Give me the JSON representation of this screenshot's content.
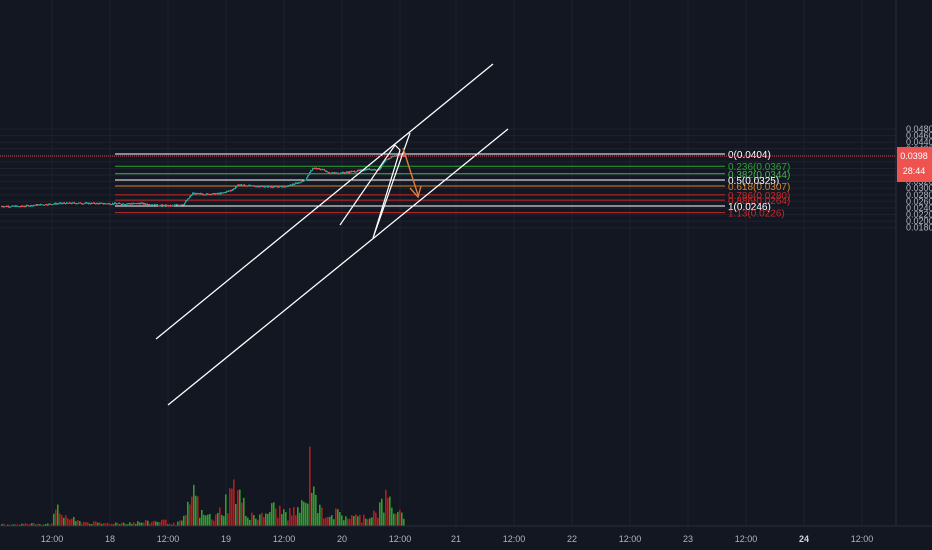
{
  "chart_data": {
    "type": "candlestick",
    "title": "",
    "y_axis": {
      "min": 0.0172,
      "max": 0.0492,
      "side": "right",
      "ticks": [
        "0.0480",
        "0.0460",
        "0.0440",
        "0.0420",
        "0.0380",
        "0.0360",
        "0.0340",
        "0.0320",
        "0.0300",
        "0.0280",
        "0.0260",
        "0.0240",
        "0.0220",
        "0.0200",
        "0.0180"
      ]
    },
    "x_axis": {
      "ticks": [
        "12:00",
        "18",
        "12:00",
        "19",
        "12:00",
        "20",
        "12:00",
        "21",
        "12:00",
        "22",
        "12:00",
        "23",
        "12:00",
        "24",
        "12:00"
      ],
      "bold_ticks": [
        "24"
      ]
    },
    "current_price": {
      "value": 0.0398,
      "label": "0.0398",
      "countdown": "28:44",
      "color": "#ef5350"
    },
    "fibonacci": {
      "levels": [
        {
          "ratio": "0",
          "price": 0.0404,
          "label": "0(0.0404)",
          "color": "#ffffff"
        },
        {
          "ratio": "0.236",
          "price": 0.0367,
          "label": "0.236(0.0367)",
          "color": "#26a62c"
        },
        {
          "ratio": "0.382",
          "price": 0.0344,
          "label": "0.382(0.0344)",
          "color": "#4caf50"
        },
        {
          "ratio": "0.5",
          "price": 0.0325,
          "label": "0.5(0.0325)",
          "color": "#ffffff"
        },
        {
          "ratio": "0.618",
          "price": 0.0307,
          "label": "0.618(0.0307)",
          "color": "#d9822b"
        },
        {
          "ratio": "0.786",
          "price": 0.028,
          "label": "0.786(0.0280)",
          "color": "#c62828"
        },
        {
          "ratio": "0.886",
          "price": 0.0264,
          "label": "0.886(0.0264)",
          "color": "#c62828"
        },
        {
          "ratio": "1",
          "price": 0.0246,
          "label": "1(0.0246)",
          "color": "#ffffff"
        },
        {
          "ratio": "1.13",
          "price": 0.0226,
          "label": "1.13(0.0226)",
          "color": "#c62828"
        }
      ]
    },
    "colors": {
      "background": "#131722",
      "up": "#26a69a",
      "down": "#ef5350",
      "volume_up": "#2e9e2e",
      "volume_down": "#b71c1c",
      "channel": "#ffffff",
      "arrow": "#e07b39",
      "axis_text": "#b2b5be"
    },
    "price_anchors": [
      [
        0,
        0.02455
      ],
      [
        20,
        0.0245
      ],
      [
        40,
        0.025
      ],
      [
        60,
        0.0254
      ],
      [
        75,
        0.0255
      ],
      [
        95,
        0.0254
      ],
      [
        120,
        0.0253
      ],
      [
        140,
        0.0254
      ],
      [
        155,
        0.0249
      ],
      [
        170,
        0.02465
      ],
      [
        183,
        0.0252
      ],
      [
        192,
        0.0284
      ],
      [
        205,
        0.0282
      ],
      [
        220,
        0.0284
      ],
      [
        232,
        0.0296
      ],
      [
        238,
        0.0311
      ],
      [
        250,
        0.0307
      ],
      [
        270,
        0.0305
      ],
      [
        285,
        0.0305
      ],
      [
        298,
        0.0317
      ],
      [
        305,
        0.0327
      ],
      [
        312,
        0.0361
      ],
      [
        322,
        0.0357
      ],
      [
        330,
        0.0346
      ],
      [
        342,
        0.0347
      ],
      [
        355,
        0.0352
      ],
      [
        368,
        0.0358
      ],
      [
        378,
        0.0356
      ],
      [
        385,
        0.0384
      ],
      [
        392,
        0.0398
      ],
      [
        400,
        0.04
      ],
      [
        404,
        0.0398
      ]
    ],
    "volume_anchors": [
      [
        0,
        2
      ],
      [
        50,
        3
      ],
      [
        56,
        18
      ],
      [
        75,
        6
      ],
      [
        100,
        3
      ],
      [
        150,
        5
      ],
      [
        160,
        7
      ],
      [
        175,
        2
      ],
      [
        185,
        10
      ],
      [
        192,
        46
      ],
      [
        200,
        14
      ],
      [
        215,
        10
      ],
      [
        235,
        48
      ],
      [
        245,
        18
      ],
      [
        260,
        10
      ],
      [
        270,
        22
      ],
      [
        290,
        14
      ],
      [
        305,
        26
      ],
      [
        310,
        82
      ],
      [
        318,
        18
      ],
      [
        330,
        16
      ],
      [
        345,
        12
      ],
      [
        360,
        10
      ],
      [
        376,
        18
      ],
      [
        386,
        32
      ],
      [
        393,
        24
      ],
      [
        403,
        8
      ]
    ]
  }
}
